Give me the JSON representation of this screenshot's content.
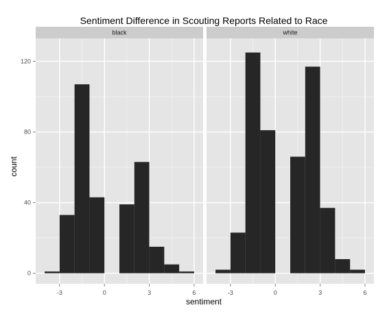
{
  "chart_data": {
    "type": "bar",
    "title": "Sentiment Difference in Scouting Reports Related to Race",
    "xlabel": "sentiment",
    "ylabel": "count",
    "xlim": [
      -4.6,
      6.6
    ],
    "ylim": [
      -6,
      133
    ],
    "x_ticks": [
      -3,
      0,
      3,
      6
    ],
    "y_ticks": [
      0,
      40,
      80,
      120
    ],
    "grid": true,
    "colors": {
      "bar": "#262626",
      "panel": "#e5e5e5",
      "strip": "#cccccc",
      "grid_major": "#ffffff",
      "grid_minor": "#f2f2f2"
    },
    "panels": [
      {
        "strip_label": "black",
        "bins": [
          {
            "x0": -4,
            "x1": -3,
            "count": 1
          },
          {
            "x0": -3,
            "x1": -2,
            "count": 33
          },
          {
            "x0": -2,
            "x1": -1,
            "count": 107
          },
          {
            "x0": -1,
            "x1": 0,
            "count": 43
          },
          {
            "x0": 1,
            "x1": 2,
            "count": 39
          },
          {
            "x0": 2,
            "x1": 3,
            "count": 63
          },
          {
            "x0": 3,
            "x1": 4,
            "count": 15
          },
          {
            "x0": 4,
            "x1": 5,
            "count": 5
          },
          {
            "x0": 5,
            "x1": 6,
            "count": 1
          }
        ]
      },
      {
        "strip_label": "white",
        "bins": [
          {
            "x0": -4,
            "x1": -3,
            "count": 2
          },
          {
            "x0": -3,
            "x1": -2,
            "count": 23
          },
          {
            "x0": -2,
            "x1": -1,
            "count": 125
          },
          {
            "x0": -1,
            "x1": 0,
            "count": 81
          },
          {
            "x0": 1,
            "x1": 2,
            "count": 66
          },
          {
            "x0": 2,
            "x1": 3,
            "count": 117
          },
          {
            "x0": 3,
            "x1": 4,
            "count": 37
          },
          {
            "x0": 4,
            "x1": 5,
            "count": 8
          },
          {
            "x0": 5,
            "x1": 6,
            "count": 2
          }
        ]
      }
    ]
  }
}
